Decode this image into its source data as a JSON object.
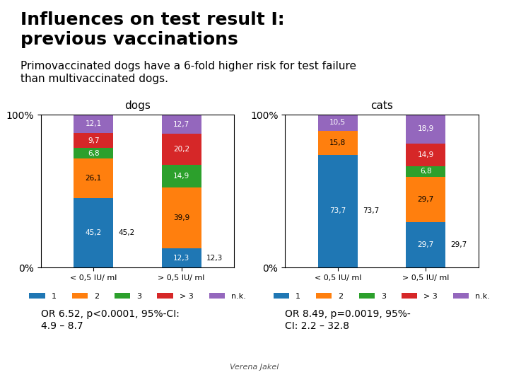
{
  "title": "Influences on test result I:\nprevious vaccinations",
  "subtitle": "Primovaccinated dogs have a 6-fold higher risk for test failure\nthan multivaccinated dogs.",
  "annotations": [
    "Verena Jakel"
  ],
  "chart_data": [
    {
      "type": "bar",
      "title": "dogs",
      "stacked": true,
      "data_labels": true,
      "grid": false,
      "legend": "upper center",
      "categories": [
        "< 0,5 IU/ ml",
        "> 0,5 IU/ ml"
      ],
      "series": [
        {
          "name": "1",
          "values": [
            45.2,
            12.3
          ],
          "value_labels": [
            "45,2",
            "12,3"
          ]
        },
        {
          "name": "2",
          "values": [
            26.1,
            39.9
          ],
          "value_labels": [
            "26,1",
            "39,9"
          ]
        },
        {
          "name": "3",
          "values": [
            6.8,
            14.9
          ],
          "value_labels": [
            "6,8",
            "14,9"
          ]
        },
        {
          "name": "> 3",
          "values": [
            9.7,
            20.2
          ],
          "value_labels": [
            "9,7",
            "20,2"
          ]
        },
        {
          "name": "n.k.",
          "values": [
            12.1,
            12.7
          ],
          "value_labels": [
            "12,1",
            "12,7"
          ]
        }
      ],
      "ylim": [
        0,
        100
      ],
      "yticks": [
        {
          "value": 0,
          "label": "0%"
        },
        {
          "value": 100,
          "label": "100%"
        }
      ],
      "annotations": [
        "OR 6.52, p<0.0001, 95%-CI:\n4.9 – 8.7"
      ]
    },
    {
      "type": "bar",
      "title": "cats",
      "stacked": true,
      "data_labels": true,
      "grid": false,
      "legend": "upper center",
      "categories": [
        "< 0,5 IU/ ml",
        "> 0,5 IU/ ml"
      ],
      "series": [
        {
          "name": "1",
          "values": [
            73.7,
            29.7
          ],
          "value_labels": [
            "73,7",
            "29,7"
          ]
        },
        {
          "name": "2",
          "values": [
            15.8,
            29.7
          ],
          "value_labels": [
            "15,8",
            "29,7"
          ]
        },
        {
          "name": "3",
          "values": [
            0.0,
            6.8
          ],
          "value_labels": [
            null,
            "6,8"
          ]
        },
        {
          "name": "> 3",
          "values": [
            0.0,
            14.9
          ],
          "value_labels": [
            null,
            "14,9"
          ]
        },
        {
          "name": "n.k.",
          "values": [
            10.5,
            18.9
          ],
          "value_labels": [
            "10,5",
            "18,9"
          ]
        }
      ],
      "ylim": [
        0,
        100
      ],
      "yticks": [
        {
          "value": 0,
          "label": "0%"
        },
        {
          "value": 100,
          "label": "100%"
        }
      ],
      "annotations": [
        "OR 8.49, p=0.0019, 95%-\nCI: 2.2 – 32.8"
      ]
    }
  ]
}
